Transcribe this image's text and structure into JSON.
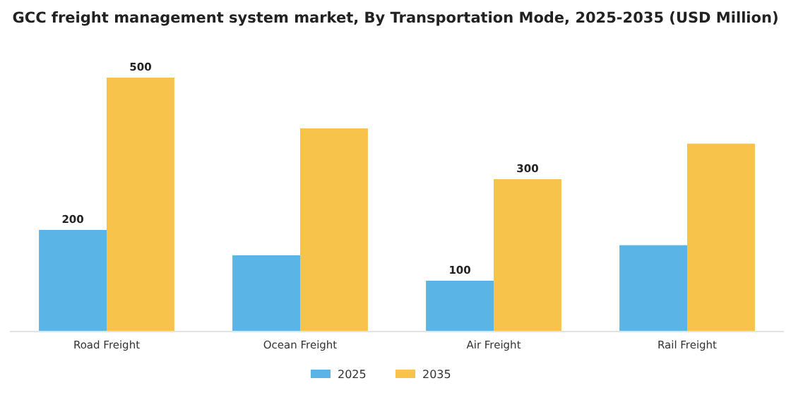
{
  "chart_data": {
    "type": "bar",
    "title": "GCC freight management system market, By Transportation Mode, 2025-2035 (USD Million)",
    "categories": [
      "Road Freight",
      "Ocean Freight",
      "Air Freight",
      "Rail Freight"
    ],
    "series": [
      {
        "name": "2025",
        "color": "#5ab4e5",
        "values": [
          200,
          150,
          100,
          170
        ],
        "value_labels": [
          "200",
          null,
          "100",
          null
        ]
      },
      {
        "name": "2035",
        "color": "#f7c34a",
        "values": [
          500,
          400,
          300,
          370
        ],
        "value_labels": [
          "500",
          null,
          "300",
          null
        ]
      }
    ],
    "tick_labels": "x",
    "legend": "bottom",
    "grid": false
  }
}
